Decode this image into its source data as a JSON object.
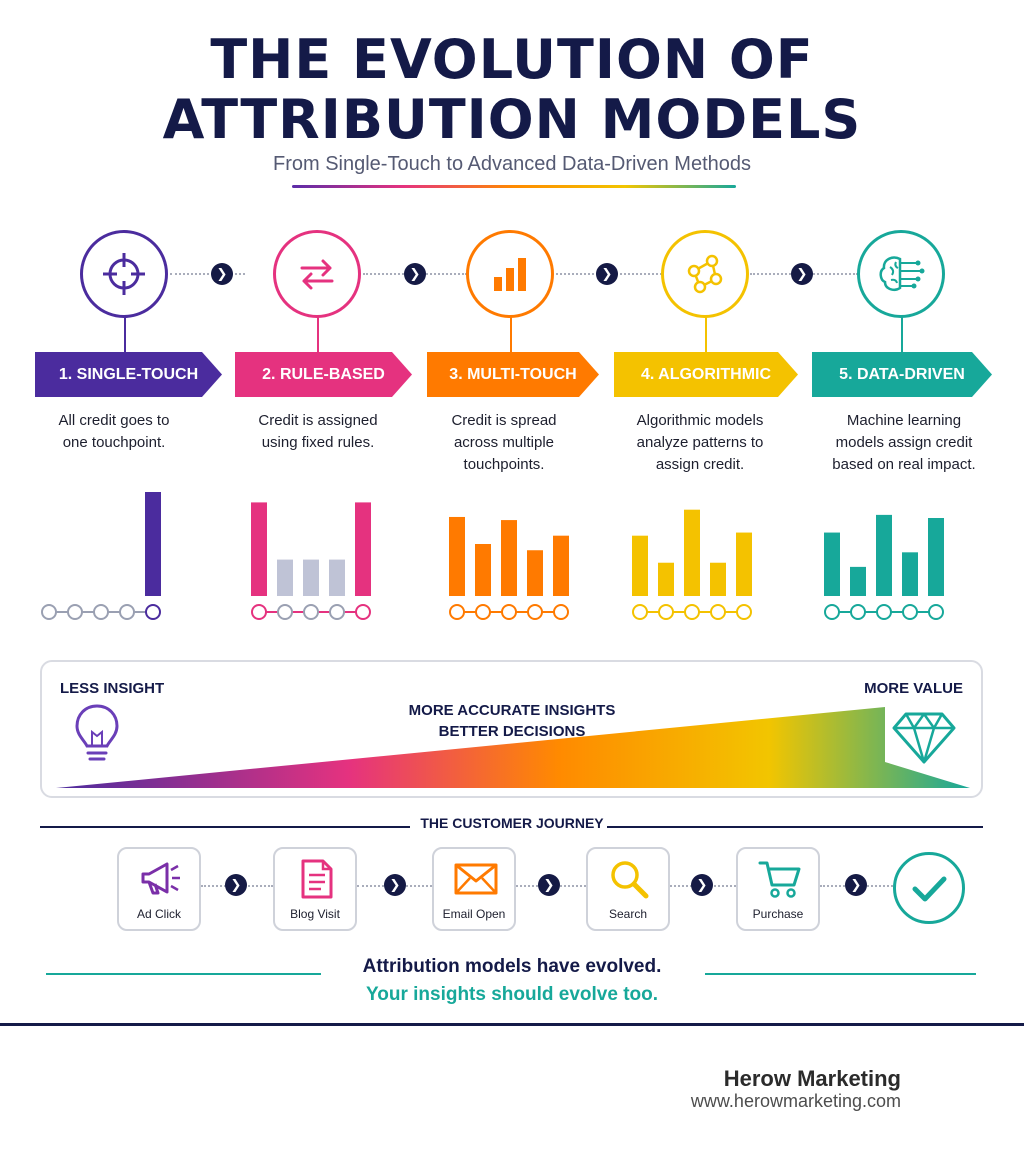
{
  "header": {
    "title_line1": "THE EVOLUTION OF",
    "title_line2": "ATTRIBUTION MODELS",
    "subtitle": "From Single-Touch to Advanced Data-Driven Methods"
  },
  "stages": [
    {
      "label": "1. SINGLE-TOUCH",
      "desc": [
        "All credit goes to",
        "one touchpoint."
      ],
      "color": "#4b2c9e",
      "icon": "target-icon",
      "credit": [
        0,
        0,
        0,
        0,
        1.0
      ]
    },
    {
      "label": "2. RULE-BASED",
      "desc": [
        "Credit is assigned",
        "using fixed rules."
      ],
      "color": "#e5327f",
      "icon": "swap-arrows-icon",
      "credit": [
        0.9,
        0.35,
        0.35,
        0.35,
        0.9
      ]
    },
    {
      "label": "3. MULTI-TOUCH",
      "desc": [
        "Credit is spread",
        "across multiple",
        "touchpoints."
      ],
      "color": "#ff7a00",
      "icon": "bar-chart-icon",
      "credit": [
        0.76,
        0.5,
        0.73,
        0.44,
        0.58
      ]
    },
    {
      "label": "4. ALGORITHMIC",
      "desc": [
        "Algorithmic models",
        "analyze patterns to",
        "assign credit."
      ],
      "color": "#f4c200",
      "icon": "network-nodes-icon",
      "credit": [
        0.58,
        0.32,
        0.83,
        0.32,
        0.61
      ]
    },
    {
      "label": "5. DATA-DRIVEN",
      "desc": [
        "Machine learning",
        "models assign credit",
        "based on real impact."
      ],
      "color": "#17a89a",
      "icon": "brain-circuit-icon",
      "credit": [
        0.61,
        0.28,
        0.78,
        0.42,
        0.75
      ]
    }
  ],
  "insight": {
    "left": "LESS INSIGHT",
    "right": "MORE VALUE",
    "middle_line1": "MORE ACCURATE INSIGHTS",
    "middle_line2": "BETTER DECISIONS",
    "left_icon": "lightbulb-icon",
    "right_icon": "diamond-icon"
  },
  "journey": {
    "title": "THE CUSTOMER JOURNEY",
    "steps": [
      {
        "label": "Ad Click",
        "icon": "megaphone-icon"
      },
      {
        "label": "Blog Visit",
        "icon": "document-icon"
      },
      {
        "label": "Email Open",
        "icon": "envelope-icon"
      },
      {
        "label": "Search",
        "icon": "magnifier-icon"
      },
      {
        "label": "Purchase",
        "icon": "cart-icon"
      }
    ],
    "end_icon": "checkmark-icon"
  },
  "closing": {
    "line1": "Attribution models have evolved.",
    "line2": "Your insights should evolve too."
  },
  "footer": {
    "brand": "Herow Marketing",
    "url": "www.herowmarketing.com"
  }
}
